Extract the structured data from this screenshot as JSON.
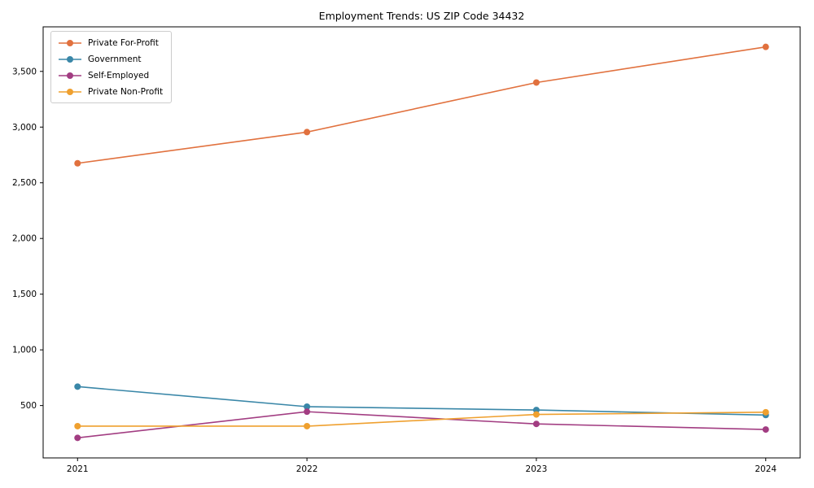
{
  "title": "Employment Trends: US ZIP Code 34432",
  "chart_data": {
    "type": "line",
    "x": [
      2021,
      2022,
      2023,
      2024
    ],
    "xtick_labels": [
      "2021",
      "2022",
      "2023",
      "2024"
    ],
    "yticks": [
      500,
      1000,
      1500,
      2000,
      2500,
      3000,
      3500
    ],
    "ytick_labels": [
      "500",
      "1,000",
      "1,500",
      "2,000",
      "2,500",
      "3,000",
      "3,500"
    ],
    "xlim": [
      2020.85,
      2024.15
    ],
    "ylim": [
      30,
      3900
    ],
    "grid": false,
    "legend_position": "upper left",
    "series": [
      {
        "name": "Private For-Profit",
        "color": "#e1713e",
        "values": [
          2675,
          2955,
          3400,
          3720
        ]
      },
      {
        "name": "Government",
        "color": "#3a87a8",
        "values": [
          670,
          490,
          460,
          415
        ]
      },
      {
        "name": "Self-Employed",
        "color": "#a23d82",
        "values": [
          210,
          445,
          335,
          285
        ]
      },
      {
        "name": "Private Non-Profit",
        "color": "#efa02f",
        "values": [
          315,
          315,
          420,
          440
        ]
      }
    ],
    "marker": "circle",
    "axis_color": "#000000"
  }
}
